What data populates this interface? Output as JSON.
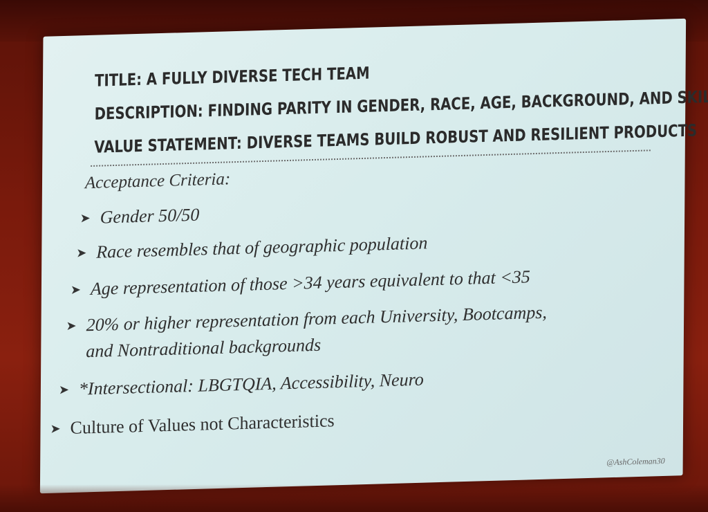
{
  "slide": {
    "title": "TITLE: A FULLY DIVERSE TECH TEAM",
    "description": "DESCRIPTION: FINDING PARITY IN GENDER, RACE, AGE, BACKGROUND, AND SKILL",
    "value_statement": "VALUE STATEMENT: DIVERSE TEAMS BUILD ROBUST AND RESILIENT PRODUCTS",
    "criteria_heading": "Acceptance Criteria:",
    "bullet_glyph": "➤",
    "items": [
      "Gender 50/50",
      "Race resembles that of geographic population",
      "Age representation of those >34 years equivalent to that <35",
      "20% or higher representation from each University, Bootcamps, and Nontraditional backgrounds",
      "*Intersectional: LBGTQIA, Accessibility, Neuro",
      "Culture of Values not Characteristics"
    ],
    "credit": "@AshColeman30"
  },
  "colors": {
    "slide_bg": "#d8ecec",
    "stage_bg": "#7a1a0c",
    "text": "#2f2f2f"
  }
}
